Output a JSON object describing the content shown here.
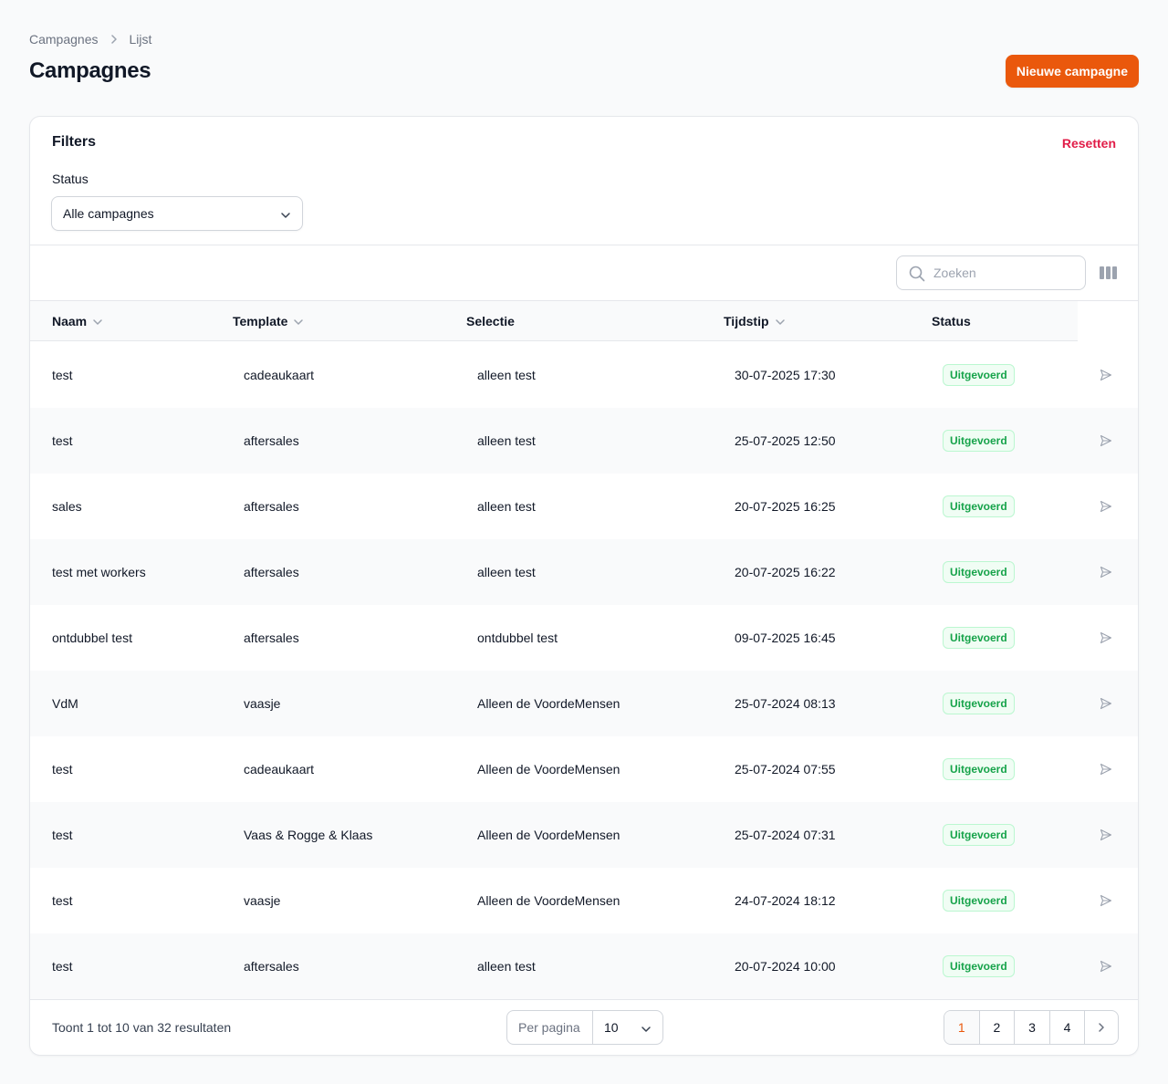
{
  "breadcrumb": {
    "root": "Campagnes",
    "current": "Lijst"
  },
  "header": {
    "title": "Campagnes",
    "new_button": "Nieuwe campagne"
  },
  "filters": {
    "title": "Filters",
    "reset": "Resetten",
    "status_label": "Status",
    "status_value": "Alle campagnes"
  },
  "search": {
    "placeholder": "Zoeken"
  },
  "table": {
    "columns": {
      "naam": "Naam",
      "template": "Template",
      "selectie": "Selectie",
      "tijdstip": "Tijdstip",
      "status": "Status"
    },
    "rows": [
      {
        "naam": "test",
        "template": "cadeaukaart",
        "selectie": "alleen test",
        "tijdstip": "30-07-2025 17:30",
        "status": "Uitgevoerd"
      },
      {
        "naam": "test",
        "template": "aftersales",
        "selectie": "alleen test",
        "tijdstip": "25-07-2025 12:50",
        "status": "Uitgevoerd"
      },
      {
        "naam": "sales",
        "template": "aftersales",
        "selectie": "alleen test",
        "tijdstip": "20-07-2025 16:25",
        "status": "Uitgevoerd"
      },
      {
        "naam": "test met workers",
        "template": "aftersales",
        "selectie": "alleen test",
        "tijdstip": "20-07-2025 16:22",
        "status": "Uitgevoerd"
      },
      {
        "naam": "ontdubbel test",
        "template": "aftersales",
        "selectie": "ontdubbel test",
        "tijdstip": "09-07-2025 16:45",
        "status": "Uitgevoerd"
      },
      {
        "naam": "VdM",
        "template": "vaasje",
        "selectie": "Alleen de VoordeMensen",
        "tijdstip": "25-07-2024 08:13",
        "status": "Uitgevoerd"
      },
      {
        "naam": "test",
        "template": "cadeaukaart",
        "selectie": "Alleen de VoordeMensen",
        "tijdstip": "25-07-2024 07:55",
        "status": "Uitgevoerd"
      },
      {
        "naam": "test",
        "template": "Vaas & Rogge & Klaas",
        "selectie": "Alleen de VoordeMensen",
        "tijdstip": "25-07-2024 07:31",
        "status": "Uitgevoerd"
      },
      {
        "naam": "test",
        "template": "vaasje",
        "selectie": "Alleen de VoordeMensen",
        "tijdstip": "24-07-2024 18:12",
        "status": "Uitgevoerd"
      },
      {
        "naam": "test",
        "template": "aftersales",
        "selectie": "alleen test",
        "tijdstip": "20-07-2024 10:00",
        "status": "Uitgevoerd"
      }
    ]
  },
  "footer": {
    "results": "Toont 1 tot 10 van 32 resultaten",
    "per_page_label": "Per pagina",
    "per_page_value": "10",
    "pages": [
      "1",
      "2",
      "3",
      "4"
    ],
    "active_page": "1"
  },
  "colors": {
    "accent": "#ea580c",
    "danger": "#e11d48",
    "success": "#16a34a"
  }
}
